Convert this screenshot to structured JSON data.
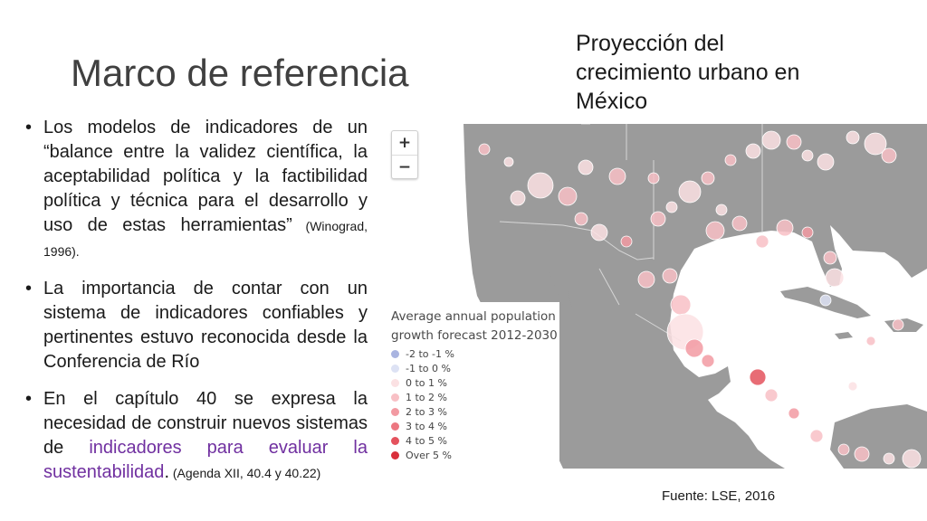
{
  "slide": {
    "title": "Marco de referencia"
  },
  "side_title": {
    "lines": [
      "Proyección del",
      "crecimiento urbano en",
      "México"
    ]
  },
  "bullets": [
    {
      "main": "Los modelos de indicadores de un “balance entre la validez científica, la aceptabilidad política y la factibilidad política y técnica para el desarrollo y uso de estas herramientas”",
      "ref": " (Winograd, 1996)."
    },
    {
      "main": "La importancia de contar con un sistema de indicadores confiables y pertinentes estuvo reconocida desde la Conferencia de Río"
    },
    {
      "main": "En el capítulo 40 se expresa la necesidad de construir nuevos sistemas de ",
      "highlight": "indicadores para evaluar la sustentabilidad",
      "tail": ".",
      "ref": " (Agenda XII, 40.4 y 40.22)"
    }
  ],
  "map": {
    "zoom_in": "+",
    "zoom_out": "−",
    "land_color": "#9b9b9b",
    "water_color": "#ffffff",
    "legend": {
      "title_lines": [
        "Average annual population",
        "growth forecast 2012-2030"
      ],
      "items": [
        {
          "label": "-2 to -1 %",
          "color": "#a9b4e0"
        },
        {
          "label": "-1 to 0 %",
          "color": "#dde2f4"
        },
        {
          "label": "0 to 1 %",
          "color": "#fbe1e3"
        },
        {
          "label": "1 to 2 %",
          "color": "#f8c0c5"
        },
        {
          "label": "2 to 3 %",
          "color": "#f29aa2"
        },
        {
          "label": "3 to 4 %",
          "color": "#ec7781"
        },
        {
          "label": "4 to 5 %",
          "color": "#e4525d"
        },
        {
          "label": "Over 5 %",
          "color": "#d92f3b"
        }
      ]
    }
  },
  "source": "Fuente: LSE, 2016"
}
